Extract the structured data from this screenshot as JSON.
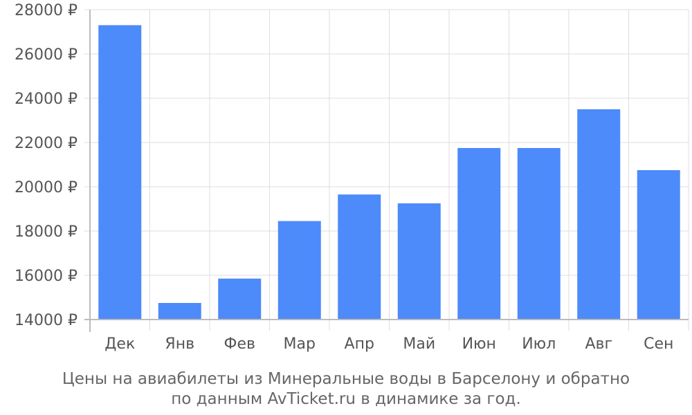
{
  "chart_data": {
    "type": "bar",
    "categories": [
      "Дек",
      "Янв",
      "Фев",
      "Мар",
      "Апр",
      "Май",
      "Июн",
      "Июл",
      "Авг",
      "Сен"
    ],
    "values": [
      27300,
      14750,
      15850,
      18450,
      19650,
      19250,
      21750,
      21750,
      23500,
      20750
    ],
    "y_ticks": [
      "14000 ₽",
      "16000 ₽",
      "18000 ₽",
      "20000 ₽",
      "22000 ₽",
      "24000 ₽",
      "26000 ₽",
      "28000 ₽"
    ],
    "y_tick_values": [
      14000,
      16000,
      18000,
      20000,
      22000,
      24000,
      26000,
      28000
    ],
    "ylim": [
      14000,
      28000
    ],
    "grid": true,
    "bar_color": "#4d8afa",
    "caption_lines": [
      "Цены на авиабилеты из Минеральные воды в Барселону и обратно",
      "по данным AvTicket.ru в динамике за год."
    ]
  }
}
